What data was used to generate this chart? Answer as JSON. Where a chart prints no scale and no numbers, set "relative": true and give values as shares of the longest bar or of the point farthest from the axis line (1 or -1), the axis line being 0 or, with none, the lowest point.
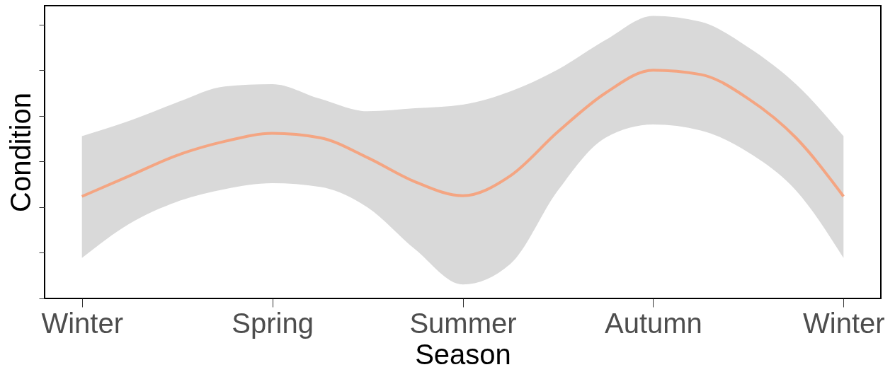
{
  "chart_data": {
    "type": "line",
    "xlabel": "Season",
    "ylabel": "Condition",
    "relative": true,
    "grid": false,
    "marker": "none",
    "line_style": "solid",
    "categories": [
      "Winter",
      null,
      null,
      null,
      "Spring",
      null,
      null,
      null,
      "Summer",
      null,
      null,
      null,
      "Autumn",
      null,
      null,
      null,
      "Winter"
    ],
    "series": [
      {
        "color": "#f4a582",
        "values": [
          0.447,
          0.537,
          0.627,
          0.688,
          0.723,
          0.704,
          0.617,
          0.511,
          0.45,
          0.537,
          0.73,
          0.9,
          1.0,
          0.981,
          0.875,
          0.704,
          0.447
        ],
        "upper": [
          0.711,
          0.778,
          0.859,
          0.929,
          0.939,
          0.875,
          0.82,
          0.833,
          0.849,
          0.907,
          1.003,
          1.132,
          1.238,
          1.212,
          1.1,
          0.939,
          0.711
        ],
        "lower": [
          0.177,
          0.328,
          0.424,
          0.479,
          0.505,
          0.489,
          0.399,
          0.215,
          0.061,
          0.151,
          0.473,
          0.704,
          0.762,
          0.736,
          0.64,
          0.473,
          0.177
        ]
      }
    ]
  }
}
